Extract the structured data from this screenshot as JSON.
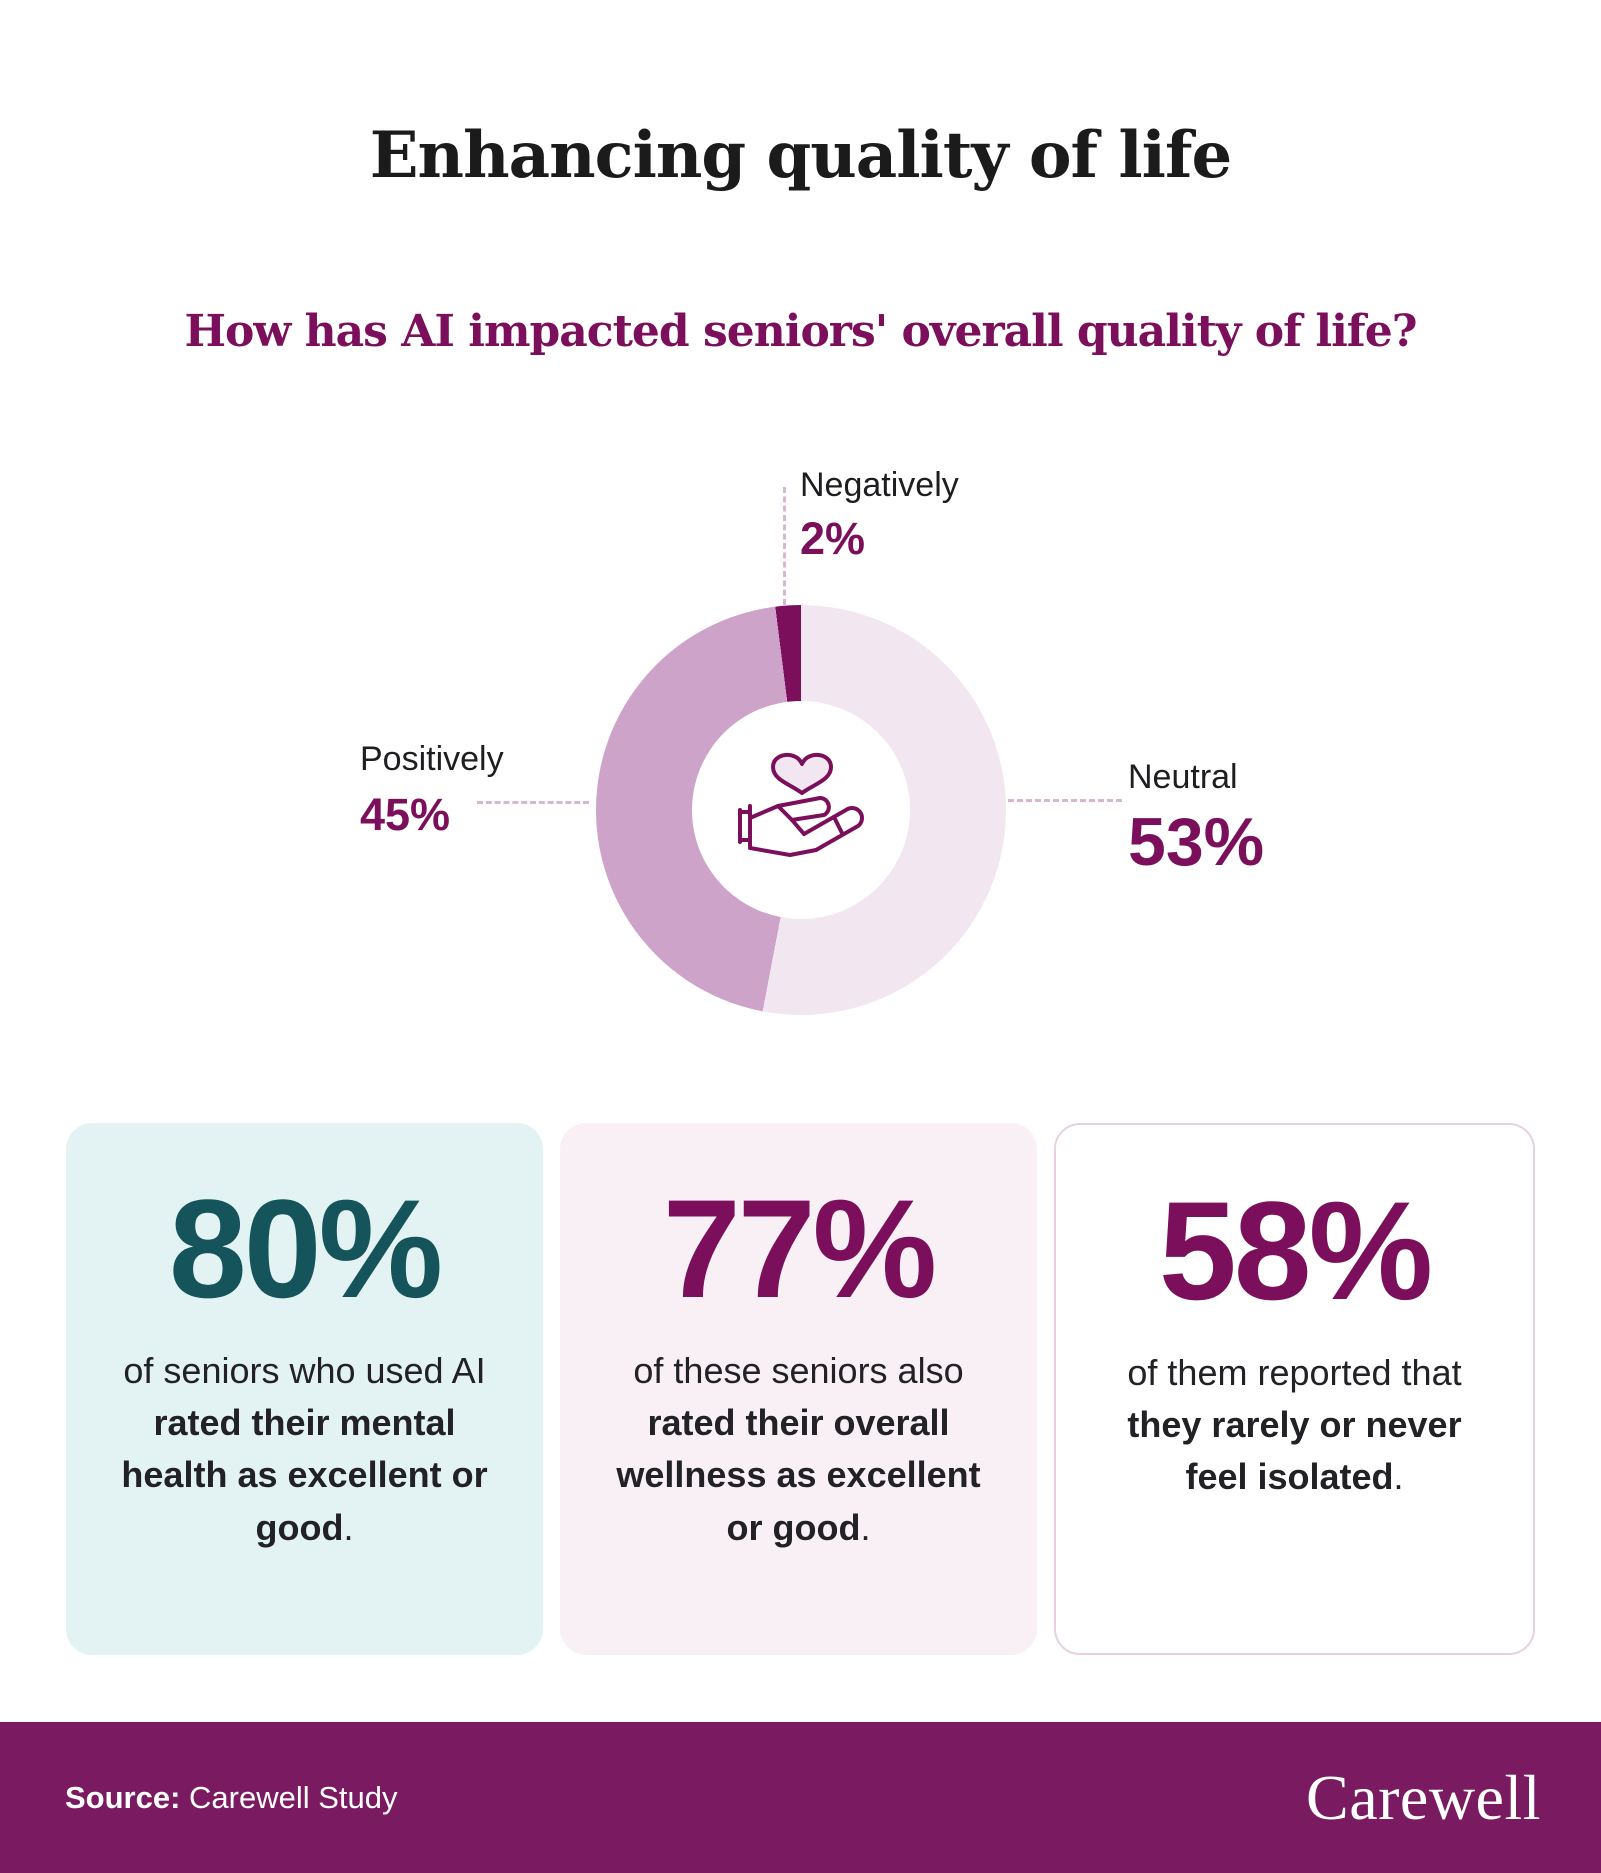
{
  "title": "Enhancing quality of life",
  "subtitle": "How has AI impacted seniors' overall quality of life?",
  "chart_data": {
    "type": "pie",
    "style": "donut",
    "title": "How has AI impacted seniors' overall quality of life?",
    "unit": "%",
    "segments": [
      {
        "label": "Neutral",
        "value": 53,
        "color": "#F2E6F0"
      },
      {
        "label": "Positively",
        "value": 45,
        "color": "#CDA3C9"
      },
      {
        "label": "Negatively",
        "value": 2,
        "color": "#7B0F5B"
      }
    ],
    "start_angle_deg": 0,
    "direction": "clockwise",
    "inner_radius_ratio": 0.53,
    "center_icon": "heart-in-hand",
    "legend_position": "callouts"
  },
  "callouts": [
    {
      "label": "Negatively",
      "value_text": "2%"
    },
    {
      "label": "Positively",
      "value_text": "45%"
    },
    {
      "label": "Neutral",
      "value_text": "53%"
    }
  ],
  "cards": [
    {
      "value": "80%",
      "value_color": "#14545A",
      "description_segments": [
        {
          "text": "of seniors who used AI ",
          "bold": false
        },
        {
          "text": "rated their mental health as excellent or good",
          "bold": true
        },
        {
          "text": ".",
          "bold": false
        }
      ]
    },
    {
      "value": "77%",
      "value_color": "#7B0F5B",
      "description_segments": [
        {
          "text": "of these seniors also ",
          "bold": false
        },
        {
          "text": "rated their overall wellness as excellent or good",
          "bold": true
        },
        {
          "text": ".",
          "bold": false
        }
      ]
    },
    {
      "value": "58%",
      "value_color": "#7B0F5B",
      "description_segments": [
        {
          "text": "of them reported that ",
          "bold": false
        },
        {
          "text": "they rarely or never feel isolated",
          "bold": true
        },
        {
          "text": ".",
          "bold": false
        }
      ]
    }
  ],
  "footer": {
    "source_label": "Source:",
    "source_value": " Carewell Study",
    "logo_text": "Carewell"
  },
  "colors": {
    "accent_purple": "#7B0F5B",
    "mauve": "#CDA3C9",
    "light_pink": "#F2E6F0",
    "teal": "#14545A",
    "card1_bg": "#E3F3F3",
    "card2_bg": "#F8F0F5",
    "card3_border": "#E6D1E2",
    "footer_bg": "#7A1B61",
    "dashed_line": "#D8B7D2",
    "text_dark": "#1E1E21"
  }
}
